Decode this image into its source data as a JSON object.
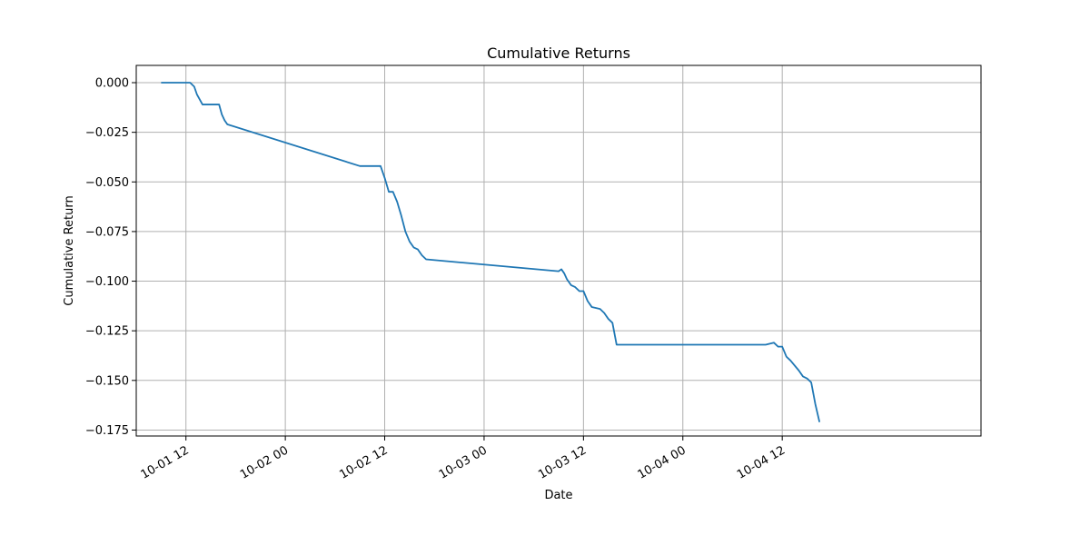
{
  "chart_data": {
    "type": "line",
    "title": "Cumulative Returns",
    "xlabel": "Date",
    "ylabel": "Cumulative Return",
    "xlim": [
      "2023-10-01 06:00",
      "2023-10-05 12:00"
    ],
    "ylim": [
      -0.178,
      0.0087
    ],
    "grid": true,
    "x_ticks": [
      "10-01 12",
      "10-02 00",
      "10-02 12",
      "10-03 00",
      "10-03 12",
      "10-04 00",
      "10-04 12"
    ],
    "y_ticks": [
      "0.000",
      "−0.025",
      "−0.050",
      "−0.075",
      "−0.100",
      "−0.125",
      "−0.150",
      "−0.175"
    ],
    "line_color": "#1f77b4",
    "series": [
      {
        "x": [
          "2023-10-01 09:00",
          "2023-10-01 12:30",
          "2023-10-01 13:00",
          "2023-10-01 13:20",
          "2023-10-01 14:00",
          "2023-10-01 14:20",
          "2023-10-01 14:40",
          "2023-10-01 16:00",
          "2023-10-01 16:20",
          "2023-10-01 16:40",
          "2023-10-01 17:00",
          "2023-10-02 09:00",
          "2023-10-02 11:00",
          "2023-10-02 11:30",
          "2023-10-02 12:00",
          "2023-10-02 12:30",
          "2023-10-02 13:00",
          "2023-10-02 13:30",
          "2023-10-02 14:00",
          "2023-10-02 14:30",
          "2023-10-02 15:00",
          "2023-10-02 15:30",
          "2023-10-02 16:00",
          "2023-10-02 16:30",
          "2023-10-02 17:00",
          "2023-10-03 09:00",
          "2023-10-03 09:20",
          "2023-10-03 09:40",
          "2023-10-03 10:00",
          "2023-10-03 10:30",
          "2023-10-03 11:00",
          "2023-10-03 11:30",
          "2023-10-03 12:00",
          "2023-10-03 12:30",
          "2023-10-03 13:00",
          "2023-10-03 14:00",
          "2023-10-03 14:30",
          "2023-10-03 15:00",
          "2023-10-03 15:30",
          "2023-10-03 16:00",
          "2023-10-03 16:30",
          "2023-10-04 09:00",
          "2023-10-04 10:00",
          "2023-10-04 11:00",
          "2023-10-04 11:30",
          "2023-10-04 12:00",
          "2023-10-04 12:30",
          "2023-10-04 13:00",
          "2023-10-04 14:00",
          "2023-10-04 14:30",
          "2023-10-04 15:00",
          "2023-10-04 15:30",
          "2023-10-04 16:00",
          "2023-10-04 16:30"
        ],
        "y": [
          0.0,
          0.0,
          -0.002,
          -0.006,
          -0.011,
          -0.011,
          -0.011,
          -0.011,
          -0.016,
          -0.019,
          -0.021,
          -0.042,
          -0.042,
          -0.042,
          -0.048,
          -0.055,
          -0.055,
          -0.06,
          -0.067,
          -0.075,
          -0.08,
          -0.083,
          -0.084,
          -0.087,
          -0.089,
          -0.095,
          -0.094,
          -0.096,
          -0.099,
          -0.102,
          -0.103,
          -0.105,
          -0.105,
          -0.11,
          -0.113,
          -0.114,
          -0.116,
          -0.119,
          -0.121,
          -0.132,
          -0.132,
          -0.132,
          -0.132,
          -0.131,
          -0.133,
          -0.133,
          -0.138,
          -0.14,
          -0.145,
          -0.148,
          -0.149,
          -0.151,
          -0.162,
          -0.171
        ]
      }
    ]
  }
}
